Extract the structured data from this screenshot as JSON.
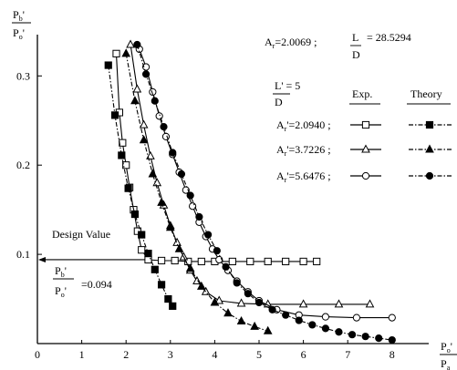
{
  "chart_data": {
    "type": "line",
    "title": "",
    "xlabel": {
      "num": "P",
      "num_sub": "o",
      "num_prime": "'",
      "den": "P",
      "den_sub": "a"
    },
    "ylabel": {
      "num": "P",
      "num_sub": "b",
      "num_prime": "'",
      "den": "P",
      "den_sub": "o",
      "den_prime": "'"
    },
    "xlim": [
      0,
      8.7
    ],
    "ylim": [
      0,
      0.345
    ],
    "x_ticks": [
      0,
      1,
      2,
      3,
      4,
      5,
      6,
      7,
      8
    ],
    "x_tick_labels": [
      "0",
      "1",
      "2",
      "3",
      "4",
      "5",
      "6",
      "7",
      "8"
    ],
    "y_ticks": [
      0.1,
      0.2,
      0.3
    ],
    "y_tick_labels": [
      "0.1",
      "0.2",
      "0.3"
    ],
    "grid": false,
    "legend_position": "top-right",
    "header": {
      "ar_label": "A",
      "ar_sub": "r",
      "ar_value": "=2.0069 ;",
      "ratio_num": "L",
      "ratio_den": "D",
      "ratio_value": "= 28.5294"
    },
    "lprime_block": {
      "num": "L' = 5",
      "den": "D"
    },
    "legend": {
      "col_exp": "Exp.",
      "col_theory": "Theory",
      "rows": [
        {
          "label_main": "A",
          "label_sub": "r",
          "label_rest": "'=2.0940 ;",
          "marker": "square"
        },
        {
          "label_main": "A",
          "label_sub": "r",
          "label_rest": "'=3.7226 ;",
          "marker": "triangle"
        },
        {
          "label_main": "A",
          "label_sub": "r",
          "label_rest": "'=5.6476 ;",
          "marker": "circle"
        }
      ]
    },
    "design": {
      "label": "Design Value",
      "value": 0.094,
      "ratio_num": "P",
      "ratio_num_sub": "b",
      "ratio_num_prime": "'",
      "ratio_den": "P",
      "ratio_den_sub": "o",
      "ratio_den_prime": "'",
      "ratio_value": "=0.094"
    },
    "series": [
      {
        "marker": "square",
        "kind": "exp",
        "x": [
          1.78,
          1.85,
          1.92,
          2.0,
          2.08,
          2.17,
          2.26,
          2.35,
          2.5,
          2.8,
          3.1,
          3.4,
          3.7,
          4.0,
          4.4,
          4.8,
          5.2,
          5.6,
          6.0,
          6.3
        ],
        "y": [
          0.325,
          0.259,
          0.225,
          0.2,
          0.175,
          0.15,
          0.126,
          0.105,
          0.094,
          0.093,
          0.093,
          0.092,
          0.092,
          0.092,
          0.092,
          0.092,
          0.092,
          0.092,
          0.092,
          0.092
        ]
      },
      {
        "marker": "square",
        "kind": "theory",
        "x": [
          1.6,
          1.75,
          1.9,
          2.05,
          2.2,
          2.35,
          2.5,
          2.65,
          2.8,
          2.95,
          3.05
        ],
        "y": [
          0.312,
          0.256,
          0.211,
          0.174,
          0.145,
          0.122,
          0.101,
          0.083,
          0.066,
          0.05,
          0.042
        ]
      },
      {
        "marker": "triangle",
        "kind": "exp",
        "x": [
          2.1,
          2.25,
          2.4,
          2.55,
          2.7,
          2.85,
          3.0,
          3.15,
          3.3,
          3.45,
          3.6,
          3.8,
          4.1,
          4.6,
          5.2,
          6.0,
          6.8,
          7.5
        ],
        "y": [
          0.335,
          0.285,
          0.245,
          0.21,
          0.18,
          0.155,
          0.132,
          0.113,
          0.097,
          0.082,
          0.07,
          0.058,
          0.048,
          0.045,
          0.044,
          0.044,
          0.044,
          0.044
        ]
      },
      {
        "marker": "triangle",
        "kind": "theory",
        "x": [
          2.0,
          2.2,
          2.4,
          2.6,
          2.8,
          3.0,
          3.2,
          3.45,
          3.7,
          4.0,
          4.3,
          4.6,
          4.9,
          5.2
        ],
        "y": [
          0.325,
          0.272,
          0.228,
          0.19,
          0.158,
          0.13,
          0.106,
          0.084,
          0.064,
          0.046,
          0.034,
          0.025,
          0.019,
          0.014
        ]
      },
      {
        "marker": "circle",
        "kind": "exp",
        "x": [
          2.3,
          2.45,
          2.6,
          2.75,
          2.9,
          3.05,
          3.2,
          3.35,
          3.5,
          3.65,
          3.8,
          3.95,
          4.1,
          4.3,
          4.5,
          4.75,
          5.0,
          5.4,
          5.9,
          6.5,
          7.2,
          8.0
        ],
        "y": [
          0.33,
          0.31,
          0.282,
          0.255,
          0.232,
          0.212,
          0.192,
          0.172,
          0.154,
          0.136,
          0.12,
          0.106,
          0.094,
          0.082,
          0.07,
          0.058,
          0.048,
          0.038,
          0.032,
          0.03,
          0.029,
          0.029
        ]
      },
      {
        "marker": "circle",
        "kind": "theory",
        "x": [
          2.25,
          2.45,
          2.65,
          2.85,
          3.05,
          3.25,
          3.45,
          3.65,
          3.85,
          4.05,
          4.25,
          4.5,
          4.75,
          5.0,
          5.3,
          5.6,
          5.9,
          6.2,
          6.5,
          6.8,
          7.1,
          7.4,
          7.7,
          8.0
        ],
        "y": [
          0.335,
          0.302,
          0.272,
          0.243,
          0.214,
          0.19,
          0.166,
          0.142,
          0.122,
          0.104,
          0.086,
          0.068,
          0.056,
          0.046,
          0.038,
          0.032,
          0.026,
          0.021,
          0.017,
          0.013,
          0.01,
          0.008,
          0.006,
          0.004
        ]
      }
    ]
  }
}
